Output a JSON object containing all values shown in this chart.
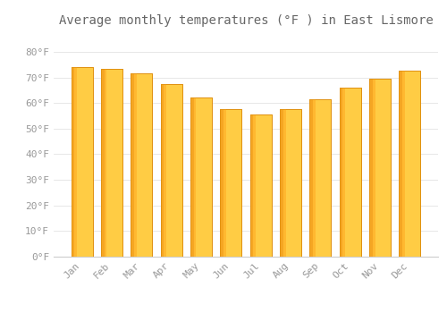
{
  "title": "Average monthly temperatures (°F ) in East Lismore",
  "months": [
    "Jan",
    "Feb",
    "Mar",
    "Apr",
    "May",
    "Jun",
    "Jul",
    "Aug",
    "Sep",
    "Oct",
    "Nov",
    "Dec"
  ],
  "values": [
    74.0,
    73.5,
    71.5,
    67.5,
    62.0,
    57.5,
    55.5,
    57.5,
    61.5,
    66.0,
    69.5,
    72.5
  ],
  "bar_color_light": "#FFCC44",
  "bar_color_dark": "#F5A623",
  "bar_edge_color": "#E09010",
  "background_color": "#FFFFFF",
  "grid_color": "#DDDDDD",
  "ylim": [
    0,
    88
  ],
  "yticks": [
    0,
    10,
    20,
    30,
    40,
    50,
    60,
    70,
    80
  ],
  "ytick_labels": [
    "0°F",
    "10°F",
    "20°F",
    "30°F",
    "40°F",
    "50°F",
    "60°F",
    "70°F",
    "80°F"
  ],
  "title_fontsize": 10,
  "tick_fontsize": 8,
  "font_color": "#999999",
  "title_color": "#666666",
  "bar_width": 0.72
}
